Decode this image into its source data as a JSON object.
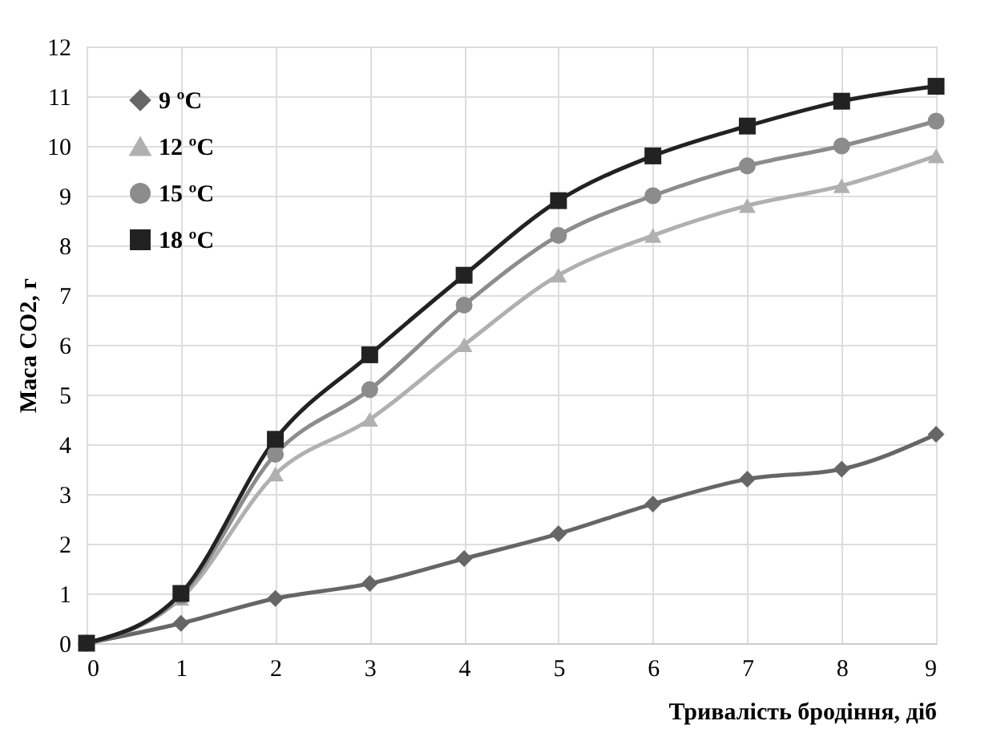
{
  "chart_data": {
    "type": "line",
    "xlabel": "Тривалість бродіння, діб",
    "ylabel": "Маса CO2, г",
    "x": [
      0,
      1,
      2,
      3,
      4,
      5,
      6,
      7,
      8,
      9
    ],
    "series": [
      {
        "name": "9 ºC",
        "color": "#666666",
        "marker": "diamond",
        "values": [
          0,
          0.4,
          0.9,
          1.2,
          1.7,
          2.2,
          2.8,
          3.3,
          3.5,
          4.2
        ]
      },
      {
        "name": "12 ºC",
        "color": "#b0b0b0",
        "marker": "triangle",
        "values": [
          0,
          0.9,
          3.4,
          4.5,
          6.0,
          7.4,
          8.2,
          8.8,
          9.2,
          9.8
        ]
      },
      {
        "name": "15 ºC",
        "color": "#8c8c8c",
        "marker": "circle",
        "values": [
          0,
          0.95,
          3.8,
          5.1,
          6.8,
          8.2,
          9.0,
          9.6,
          10.0,
          10.5
        ]
      },
      {
        "name": "18 ºC",
        "color": "#222222",
        "marker": "square",
        "values": [
          0,
          1.0,
          4.1,
          5.8,
          7.4,
          8.9,
          9.8,
          10.4,
          10.9,
          11.2
        ]
      }
    ],
    "xlim": [
      0,
      9
    ],
    "xticks": [
      0,
      1,
      2,
      3,
      4,
      5,
      6,
      7,
      8,
      9
    ],
    "ylim": [
      0,
      12
    ],
    "yticks": [
      0,
      1,
      2,
      3,
      4,
      5,
      6,
      7,
      8,
      9,
      10,
      11,
      12
    ],
    "grid": true,
    "legend": "top left",
    "line_style": "solid"
  }
}
